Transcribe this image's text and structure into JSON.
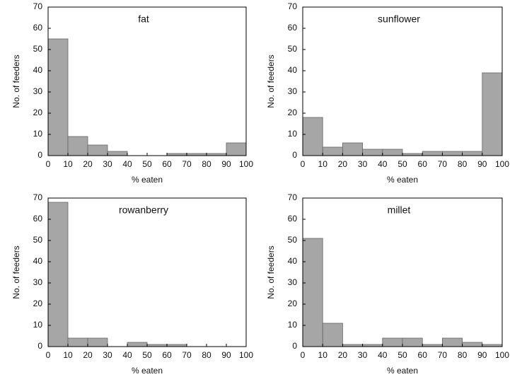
{
  "chart_data": [
    {
      "type": "histogram",
      "title": "fat",
      "xlabel": "% eaten",
      "ylabel": "No. of feeders",
      "color": "#a6a6a6",
      "bins": [
        0,
        10,
        20,
        30,
        40,
        50,
        60,
        70,
        80,
        90,
        100
      ],
      "counts": [
        55,
        9,
        5,
        2,
        0,
        0,
        1,
        1,
        1,
        6
      ],
      "xlim": [
        0,
        100
      ],
      "ylim": [
        0,
        70
      ],
      "xticks": [
        0,
        10,
        20,
        30,
        40,
        50,
        60,
        70,
        80,
        90,
        100
      ],
      "yticks": [
        0,
        10,
        20,
        30,
        40,
        50,
        60,
        70
      ]
    },
    {
      "type": "histogram",
      "title": "sunflower",
      "xlabel": "% eaten",
      "ylabel": "No. of feeders",
      "color": "#a6a6a6",
      "bins": [
        0,
        10,
        20,
        30,
        40,
        50,
        60,
        70,
        80,
        90,
        100
      ],
      "counts": [
        18,
        4,
        6,
        3,
        3,
        1,
        2,
        2,
        2,
        39
      ],
      "xlim": [
        0,
        100
      ],
      "ylim": [
        0,
        70
      ],
      "xticks": [
        0,
        10,
        20,
        30,
        40,
        50,
        60,
        70,
        80,
        90,
        100
      ],
      "yticks": [
        0,
        10,
        20,
        30,
        40,
        50,
        60,
        70
      ]
    },
    {
      "type": "histogram",
      "title": "rowanberry",
      "xlabel": "% eaten",
      "ylabel": "No. of feeders",
      "color": "#a6a6a6",
      "bins": [
        0,
        10,
        20,
        30,
        40,
        50,
        60,
        70,
        80,
        90,
        100
      ],
      "counts": [
        68,
        4,
        4,
        0,
        2,
        1,
        1,
        0,
        0,
        0
      ],
      "xlim": [
        0,
        100
      ],
      "ylim": [
        0,
        70
      ],
      "xticks": [
        0,
        10,
        20,
        30,
        40,
        50,
        60,
        70,
        80,
        90,
        100
      ],
      "yticks": [
        0,
        10,
        20,
        30,
        40,
        50,
        60,
        70
      ]
    },
    {
      "type": "histogram",
      "title": "millet",
      "xlabel": "% eaten",
      "ylabel": "No. of feeders",
      "color": "#a6a6a6",
      "bins": [
        0,
        10,
        20,
        30,
        40,
        50,
        60,
        70,
        80,
        90,
        100
      ],
      "counts": [
        51,
        11,
        1,
        1,
        4,
        4,
        1,
        4,
        2,
        1
      ],
      "xlim": [
        0,
        100
      ],
      "ylim": [
        0,
        70
      ],
      "xticks": [
        0,
        10,
        20,
        30,
        40,
        50,
        60,
        70,
        80,
        90,
        100
      ],
      "yticks": [
        0,
        10,
        20,
        30,
        40,
        50,
        60,
        70
      ]
    }
  ]
}
